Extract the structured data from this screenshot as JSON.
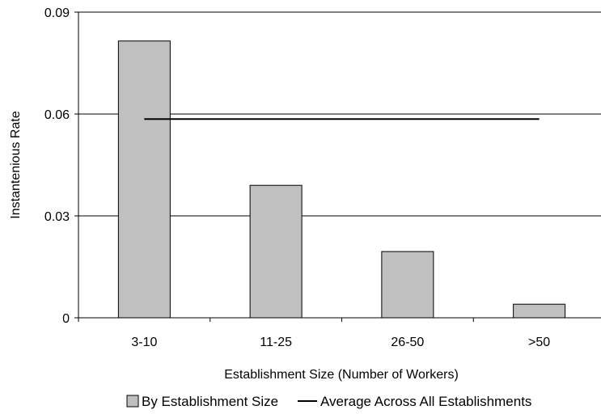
{
  "chart_data": {
    "type": "bar",
    "categories": [
      "3-10",
      "11-25",
      "26-50",
      ">50"
    ],
    "series": [
      {
        "name": "By Establishment Size",
        "type": "bar",
        "values": [
          0.0815,
          0.039,
          0.0195,
          0.004
        ],
        "color": "#c0c0c0"
      },
      {
        "name": "Average Across All Establishments",
        "type": "line",
        "value": 0.0585,
        "color": "#000000"
      }
    ],
    "xlabel": "Establishment Size (Number of Workers)",
    "ylabel": "Instantenious Rate",
    "ylim": [
      0,
      0.09
    ],
    "yticks": [
      "0",
      "0.03",
      "0.06",
      "0.09"
    ],
    "grid": true,
    "legend": "bottom"
  }
}
